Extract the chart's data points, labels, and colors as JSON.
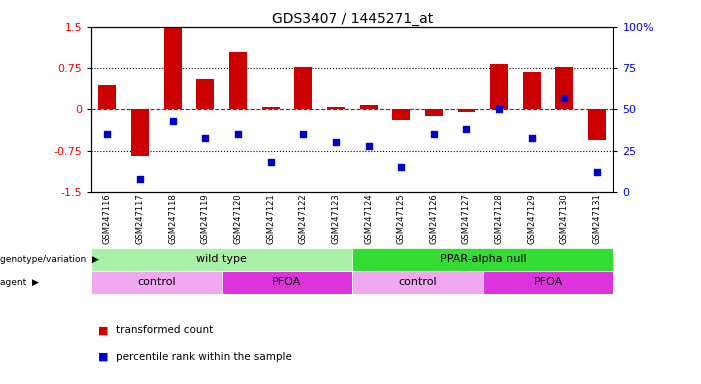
{
  "title": "GDS3407 / 1445271_at",
  "samples": [
    "GSM247116",
    "GSM247117",
    "GSM247118",
    "GSM247119",
    "GSM247120",
    "GSM247121",
    "GSM247122",
    "GSM247123",
    "GSM247124",
    "GSM247125",
    "GSM247126",
    "GSM247127",
    "GSM247128",
    "GSM247129",
    "GSM247130",
    "GSM247131"
  ],
  "bar_values": [
    0.45,
    -0.85,
    1.5,
    0.55,
    1.05,
    0.05,
    0.78,
    0.05,
    0.08,
    -0.2,
    -0.12,
    -0.04,
    0.82,
    0.68,
    0.78,
    -0.55
  ],
  "pct_values": [
    35,
    8,
    43,
    33,
    35,
    18,
    35,
    30,
    28,
    15,
    35,
    38,
    50,
    33,
    57,
    12
  ],
  "ylim_left": [
    -1.5,
    1.5
  ],
  "ylim_right": [
    0,
    100
  ],
  "bar_color": "#cc0000",
  "dot_color": "#0000cc",
  "dashed_line_color": "#cc0000",
  "genotype_groups": [
    {
      "label": "wild type",
      "start": 0,
      "end": 8,
      "color": "#a8f0a8"
    },
    {
      "label": "PPAR-alpha null",
      "start": 8,
      "end": 16,
      "color": "#33dd33"
    }
  ],
  "agent_groups": [
    {
      "label": "control",
      "start": 0,
      "end": 4,
      "color": "#f0a8f0"
    },
    {
      "label": "PFOA",
      "start": 4,
      "end": 8,
      "color": "#dd33dd"
    },
    {
      "label": "control",
      "start": 8,
      "end": 12,
      "color": "#f0a8f0"
    },
    {
      "label": "PFOA",
      "start": 12,
      "end": 16,
      "color": "#dd33dd"
    }
  ],
  "legend_items": [
    {
      "label": "transformed count",
      "color": "#cc0000"
    },
    {
      "label": "percentile rank within the sample",
      "color": "#0000cc"
    }
  ]
}
